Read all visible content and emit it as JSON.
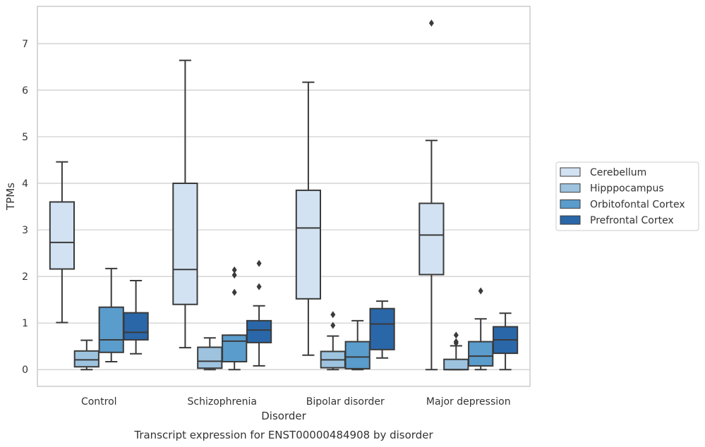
{
  "chart_data": {
    "type": "box",
    "caption": "Transcript expression for ENST00000484908 by disorder",
    "xlabel": "Disorder",
    "ylabel": "TPMs",
    "ylim": [
      -0.36,
      7.8
    ],
    "yticks": [
      0,
      1,
      2,
      3,
      4,
      5,
      6,
      7
    ],
    "grid": true,
    "legend_position": "right",
    "categories": [
      "Control",
      "Schizophrenia",
      "Bipolar disorder",
      "Major depression"
    ],
    "series": [
      {
        "name": "Cerebellum",
        "color": "#d2e2f2",
        "boxes": [
          {
            "whislo": 1.01,
            "q1": 2.16,
            "med": 2.73,
            "q3": 3.6,
            "whishi": 4.46,
            "fliers": []
          },
          {
            "whislo": 0.47,
            "q1": 1.4,
            "med": 2.15,
            "q3": 4.0,
            "whishi": 6.64,
            "fliers": []
          },
          {
            "whislo": 0.31,
            "q1": 1.52,
            "med": 3.04,
            "q3": 3.85,
            "whishi": 6.17,
            "fliers": []
          },
          {
            "whislo": 0.0,
            "q1": 2.04,
            "med": 2.89,
            "q3": 3.57,
            "whishi": 4.92,
            "fliers": [
              7.44
            ]
          }
        ]
      },
      {
        "name": "Hipppocampus",
        "color": "#9dc3df",
        "boxes": [
          {
            "whislo": 0.0,
            "q1": 0.06,
            "med": 0.21,
            "q3": 0.4,
            "whishi": 0.63,
            "fliers": []
          },
          {
            "whislo": 0.0,
            "q1": 0.03,
            "med": 0.18,
            "q3": 0.48,
            "whishi": 0.68,
            "fliers": []
          },
          {
            "whislo": 0.0,
            "q1": 0.04,
            "med": 0.21,
            "q3": 0.39,
            "whishi": 0.72,
            "fliers": [
              0.95,
              1.18
            ]
          },
          {
            "whislo": 0.0,
            "q1": 0.0,
            "med": 0.0,
            "q3": 0.22,
            "whishi": 0.51,
            "fliers": [
              0.57,
              0.6,
              0.74
            ]
          }
        ]
      },
      {
        "name": "Orbitofontal Cortex",
        "color": "#5a9ccc",
        "boxes": [
          {
            "whislo": 0.17,
            "q1": 0.37,
            "med": 0.64,
            "q3": 1.34,
            "whishi": 2.17,
            "fliers": []
          },
          {
            "whislo": 0.0,
            "q1": 0.17,
            "med": 0.61,
            "q3": 0.74,
            "whishi": 0.74,
            "fliers": [
              1.66,
              2.03,
              2.14
            ]
          },
          {
            "whislo": 0.0,
            "q1": 0.02,
            "med": 0.27,
            "q3": 0.6,
            "whishi": 1.05,
            "fliers": []
          },
          {
            "whislo": 0.0,
            "q1": 0.08,
            "med": 0.29,
            "q3": 0.6,
            "whishi": 1.09,
            "fliers": [
              1.69
            ]
          }
        ]
      },
      {
        "name": "Prefrontal Cortex",
        "color": "#2a67a9",
        "boxes": [
          {
            "whislo": 0.34,
            "q1": 0.64,
            "med": 0.8,
            "q3": 1.22,
            "whishi": 1.91,
            "fliers": []
          },
          {
            "whislo": 0.08,
            "q1": 0.58,
            "med": 0.85,
            "q3": 1.05,
            "whishi": 1.37,
            "fliers": [
              1.78,
              2.28
            ]
          },
          {
            "whislo": 0.25,
            "q1": 0.43,
            "med": 0.98,
            "q3": 1.31,
            "whishi": 1.47,
            "fliers": []
          },
          {
            "whislo": 0.0,
            "q1": 0.35,
            "med": 0.64,
            "q3": 0.92,
            "whishi": 1.21,
            "fliers": []
          }
        ]
      }
    ]
  }
}
